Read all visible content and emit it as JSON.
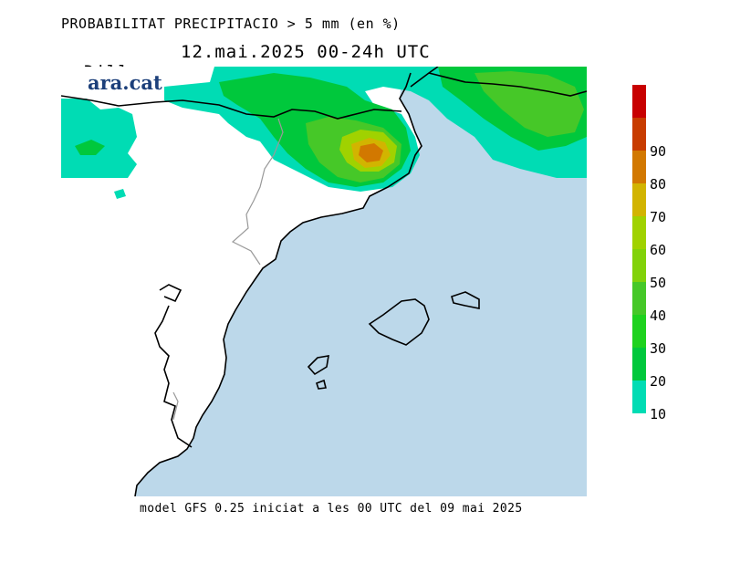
{
  "header": {
    "title": "PROBABILITAT PRECIPITACIO > 5 mm (en %)",
    "day": "Dilluns",
    "period": "12.mai.2025 00-24h UTC"
  },
  "footer": {
    "model_note": "model GFS 0.25 iniciat a les 00 UTC del 09 mai 2025"
  },
  "logo": {
    "text": "ara.cat"
  },
  "legend": {
    "levels": [
      {
        "label": "10",
        "color": "#00dcb4"
      },
      {
        "label": "20",
        "color": "#00c83c"
      },
      {
        "label": "30",
        "color": "#1ed21e"
      },
      {
        "label": "40",
        "color": "#46c828"
      },
      {
        "label": "50",
        "color": "#82d20a"
      },
      {
        "label": "60",
        "color": "#a0d200"
      },
      {
        "label": "70",
        "color": "#d2b400"
      },
      {
        "label": "80",
        "color": "#d27800"
      },
      {
        "label": "90",
        "color": "#c83c00"
      },
      {
        "label": "",
        "color": "#c80000"
      }
    ]
  },
  "map_colors": {
    "sea": "#bcd8ea",
    "land": "#ffffff",
    "coast": "#000000",
    "border": "#999999"
  }
}
